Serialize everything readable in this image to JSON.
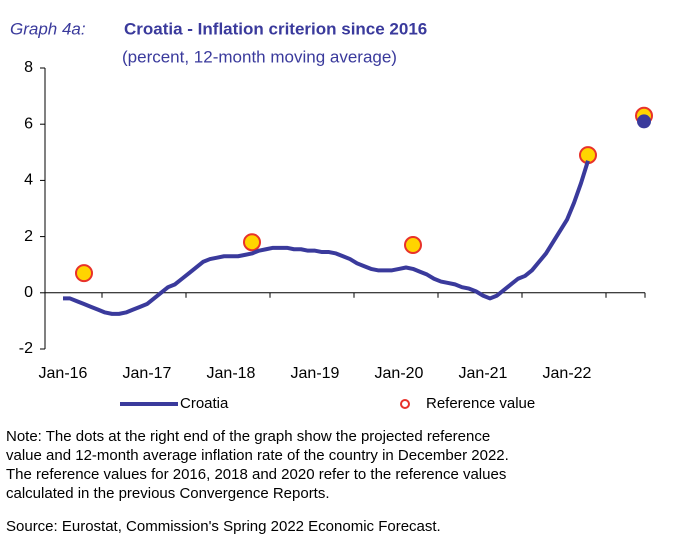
{
  "chart_data": {
    "type": "line",
    "title_prefix": "Graph 4a:",
    "title": "Croatia - Inflation criterion since 2016",
    "subtitle": "(percent, 12-month moving average)",
    "categories": [
      "Jan-16",
      null,
      null,
      null,
      null,
      null,
      null,
      null,
      null,
      null,
      null,
      null,
      "Jan-17",
      null,
      null,
      null,
      null,
      null,
      null,
      null,
      null,
      null,
      null,
      null,
      "Jan-18",
      null,
      null,
      null,
      null,
      null,
      null,
      null,
      null,
      null,
      null,
      null,
      "Jan-19",
      null,
      null,
      null,
      null,
      null,
      null,
      null,
      null,
      null,
      null,
      null,
      "Jan-20",
      null,
      null,
      null,
      null,
      null,
      null,
      null,
      null,
      null,
      null,
      null,
      "Jan-21",
      null,
      null,
      null,
      null,
      null,
      null,
      null,
      null,
      null,
      null,
      null,
      "Jan-22",
      null,
      null,
      null,
      null,
      null,
      null,
      null,
      null,
      null,
      null,
      null
    ],
    "series": [
      {
        "name": "Croatia",
        "color": "#3a3a9c",
        "style": "line",
        "values": [
          -0.2,
          -0.2,
          -0.3,
          -0.4,
          -0.5,
          -0.6,
          -0.7,
          -0.75,
          -0.75,
          -0.7,
          -0.6,
          -0.5,
          -0.4,
          -0.2,
          0.0,
          0.2,
          0.3,
          0.5,
          0.7,
          0.9,
          1.1,
          1.2,
          1.25,
          1.3,
          1.3,
          1.3,
          1.35,
          1.4,
          1.5,
          1.55,
          1.6,
          1.6,
          1.6,
          1.55,
          1.55,
          1.5,
          1.5,
          1.45,
          1.45,
          1.4,
          1.3,
          1.2,
          1.05,
          0.95,
          0.85,
          0.8,
          0.8,
          0.8,
          0.85,
          0.9,
          0.85,
          0.75,
          0.65,
          0.5,
          0.4,
          0.35,
          0.3,
          0.2,
          0.15,
          0.05,
          -0.1,
          -0.2,
          -0.1,
          0.1,
          0.3,
          0.5,
          0.6,
          0.8,
          1.1,
          1.4,
          1.8,
          2.2,
          2.6,
          3.2,
          3.9,
          4.7,
          null,
          null,
          null,
          null,
          null,
          null,
          null,
          6.1
        ]
      },
      {
        "name": "Reference value",
        "color": "#e8322a",
        "fill": "#ffd400",
        "style": "marker",
        "values": [
          null,
          null,
          null,
          0.7,
          null,
          null,
          null,
          null,
          null,
          null,
          null,
          null,
          null,
          null,
          null,
          null,
          null,
          null,
          null,
          null,
          null,
          null,
          null,
          null,
          null,
          null,
          null,
          1.8,
          null,
          null,
          null,
          null,
          null,
          null,
          null,
          null,
          null,
          null,
          null,
          null,
          null,
          null,
          null,
          null,
          null,
          null,
          null,
          null,
          null,
          null,
          1.7,
          null,
          null,
          null,
          null,
          null,
          null,
          null,
          null,
          null,
          null,
          null,
          null,
          null,
          null,
          null,
          null,
          null,
          null,
          null,
          null,
          null,
          null,
          null,
          null,
          4.9,
          null,
          null,
          null,
          null,
          null,
          null,
          null,
          6.3
        ]
      }
    ],
    "ylim": [
      -2,
      8
    ],
    "yticks": [
      -2,
      0,
      2,
      4,
      6,
      8
    ],
    "note": [
      "Note: The dots at the right end of the graph show the projected reference",
      "value and 12-month average inflation rate of the country in December 2022.",
      "The reference values for 2016, 2018 and 2020 refer to the reference values",
      "calculated in the previous Convergence Reports."
    ],
    "source": "Source: Eurostat, Commission's Spring 2022 Economic Forecast."
  }
}
